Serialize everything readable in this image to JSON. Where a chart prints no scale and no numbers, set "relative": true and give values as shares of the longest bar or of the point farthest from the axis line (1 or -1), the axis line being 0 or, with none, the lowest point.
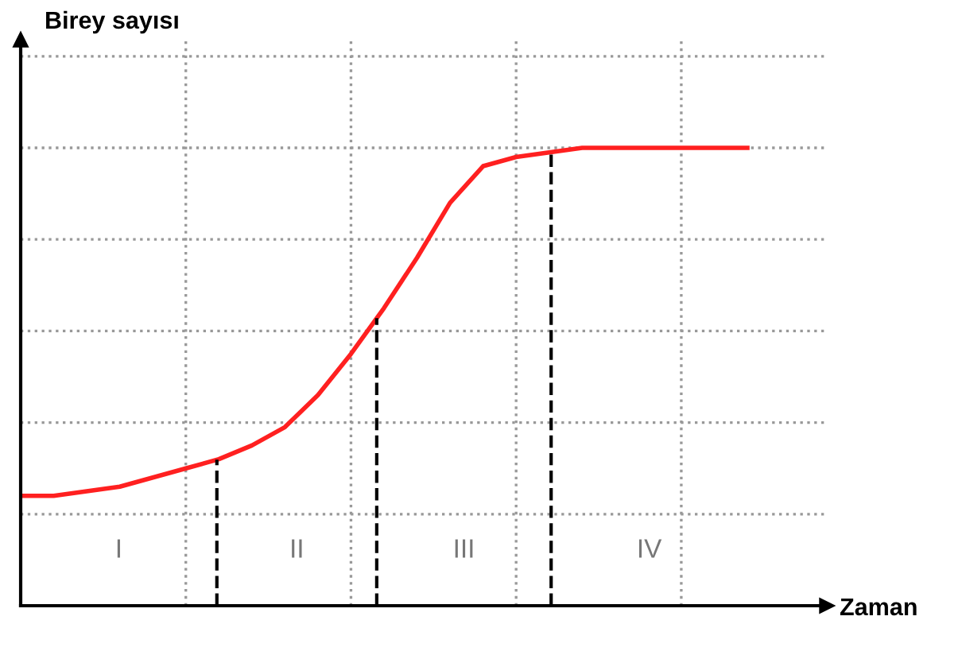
{
  "chart_data": {
    "type": "line",
    "relative": true,
    "xlabel": "Zaman",
    "ylabel": "Birey sayısı",
    "categories": [
      null,
      null,
      null,
      null,
      null,
      null,
      null,
      null,
      null,
      null,
      null,
      null,
      null,
      null,
      null,
      null,
      null,
      null,
      null,
      null,
      null,
      null,
      null
    ],
    "series": [
      {
        "color": "#ff2020",
        "values": [
          0.24,
          0.24,
          0.25,
          0.26,
          0.28,
          0.3,
          0.32,
          0.35,
          0.39,
          0.46,
          0.55,
          0.65,
          0.76,
          0.88,
          0.96,
          0.98,
          0.99,
          1,
          1,
          1,
          1,
          1,
          1
        ]
      }
    ],
    "annotations": [
      "I",
      "II",
      "III",
      "IV"
    ],
    "grid": true,
    "legend": false,
    "tick_labels": false,
    "marker": "none",
    "line_style": "solid"
  }
}
